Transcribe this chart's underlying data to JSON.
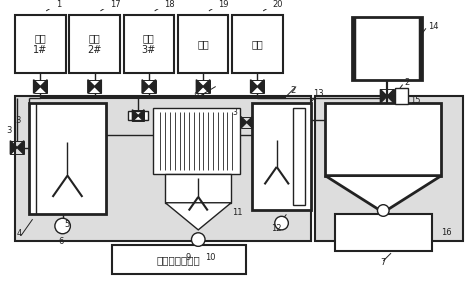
{
  "figsize": [
    4.74,
    2.88
  ],
  "dpi": 100,
  "lc": "#222222",
  "bg_inner": "#e8e8e8",
  "bg_white": "#ffffff",
  "title": "集成控制处理器",
  "tank_labels": [
    "试剂\n1#",
    "试剂\n2#",
    "试剂\n3#",
    "纯水",
    "石墨"
  ],
  "tank_nums": [
    "1",
    "17",
    "18",
    "19",
    "20"
  ]
}
